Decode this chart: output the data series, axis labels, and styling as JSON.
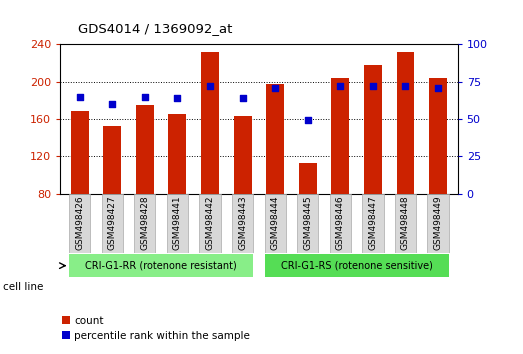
{
  "title": "GDS4014 / 1369092_at",
  "samples": [
    "GSM498426",
    "GSM498427",
    "GSM498428",
    "GSM498441",
    "GSM498442",
    "GSM498443",
    "GSM498444",
    "GSM498445",
    "GSM498446",
    "GSM498447",
    "GSM498448",
    "GSM498449"
  ],
  "counts": [
    168,
    152,
    175,
    165,
    232,
    163,
    197,
    113,
    204,
    218,
    232,
    204
  ],
  "percentile_ranks": [
    65,
    60,
    65,
    64,
    72,
    64,
    71,
    49,
    72,
    72,
    72,
    71
  ],
  "ylim_left": [
    80,
    240
  ],
  "ylim_right": [
    0,
    100
  ],
  "yticks_left": [
    80,
    120,
    160,
    200,
    240
  ],
  "yticks_right": [
    0,
    25,
    50,
    75,
    100
  ],
  "bar_color": "#cc2200",
  "dot_color": "#0000cc",
  "background_color": "#ffffff",
  "group1_label": "CRI-G1-RR (rotenone resistant)",
  "group2_label": "CRI-G1-RS (rotenone sensitive)",
  "group1_color": "#88ee88",
  "group2_color": "#55dd55",
  "group1_n": 6,
  "group2_n": 6,
  "xlabel": "cell line",
  "legend_count": "count",
  "legend_pct": "percentile rank within the sample",
  "bar_width": 0.55,
  "bar_bottom": 80,
  "tick_color_left": "#cc2200",
  "tick_color_right": "#0000cc",
  "grid_yticks": [
    120,
    160,
    200
  ],
  "label_box_color": "#d8d8d8",
  "label_box_edge": "#aaaaaa"
}
